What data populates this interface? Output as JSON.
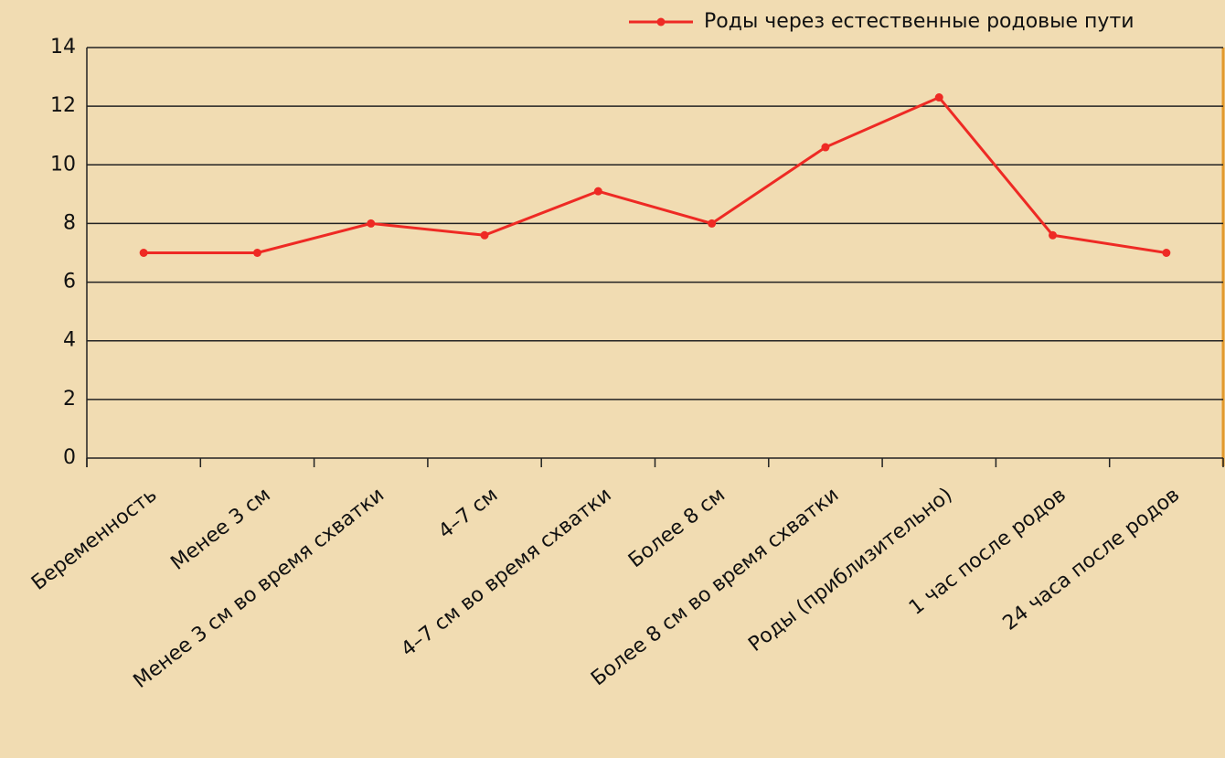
{
  "chart_data": {
    "type": "line",
    "categories": [
      "Беременность",
      "Менее 3 см",
      "Менее 3 см во время схватки",
      "4–7 см",
      "4–7 см во время схватки",
      "Более 8 см",
      "Более 8 см во время схватки",
      "Роды (приблизительно)",
      "1 час после родов",
      "24 часа после родов"
    ],
    "series": [
      {
        "name": "Роды через естественные родовые пути",
        "color": "#ee2a24",
        "values": [
          7.0,
          7.0,
          8.0,
          7.6,
          9.1,
          8.0,
          10.6,
          12.3,
          7.6,
          7.0
        ]
      }
    ],
    "ylim": [
      0,
      14
    ],
    "yticks": [
      0,
      2,
      4,
      6,
      8,
      10,
      12,
      14
    ],
    "grid": true,
    "legend": "top-right"
  }
}
